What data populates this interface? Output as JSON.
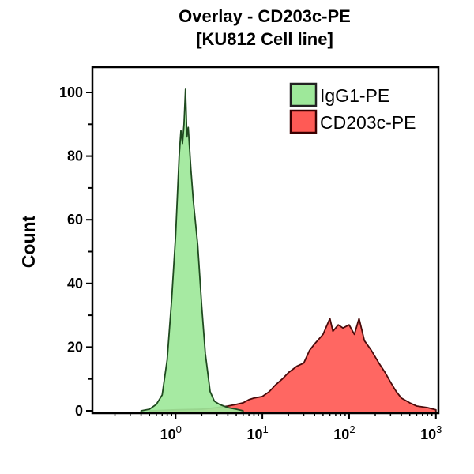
{
  "chart_data": {
    "type": "area",
    "title": "Overlay - CD203c-PE",
    "subtitle": "[KU812 Cell line]",
    "xlabel": "",
    "ylabel": "Count",
    "xscale": "log",
    "xlim": [
      0.11,
      1070
    ],
    "ylim": [
      0,
      108
    ],
    "grid": false,
    "legend_position": "top-right",
    "x_ticks": [
      {
        "base": "10",
        "exp": "0",
        "value": 1
      },
      {
        "base": "10",
        "exp": "1",
        "value": 10
      },
      {
        "base": "10",
        "exp": "2",
        "value": 100
      },
      {
        "base": "10",
        "exp": "3",
        "value": 1000
      }
    ],
    "y_ticks": [
      0,
      20,
      40,
      60,
      80,
      100
    ],
    "series": [
      {
        "name": "IgG1-PE",
        "fill": "#9ee89a",
        "stroke": "#1f4a1f",
        "x": [
          0.4,
          0.5,
          0.6,
          0.7,
          0.8,
          0.9,
          1.0,
          1.1,
          1.15,
          1.2,
          1.25,
          1.3,
          1.35,
          1.4,
          1.5,
          1.6,
          1.8,
          2.0,
          2.2,
          2.5,
          2.8,
          3.2,
          4,
          5,
          6
        ],
        "y": [
          0,
          0.5,
          2,
          5,
          16,
          35,
          55,
          80,
          88,
          84,
          90,
          101,
          86,
          89,
          76,
          66,
          52,
          33,
          18,
          6,
          3,
          2,
          1,
          0.5,
          0
        ]
      },
      {
        "name": "CD203c-PE",
        "fill": "#ff5a55",
        "stroke": "#4a0a0a",
        "x": [
          0.5,
          1,
          2,
          3,
          4,
          5,
          6,
          7,
          8,
          10,
          12,
          14,
          17,
          20,
          25,
          30,
          35,
          40,
          50,
          60,
          65,
          75,
          85,
          100,
          115,
          130,
          150,
          180,
          220,
          260,
          300,
          350,
          400,
          500,
          600,
          800,
          1000
        ],
        "y": [
          0,
          0.3,
          0.5,
          1,
          1.5,
          2,
          2.5,
          3.5,
          4,
          4.5,
          6,
          8,
          10,
          12,
          14,
          15,
          19,
          21,
          24,
          29,
          25,
          27,
          26,
          27,
          24,
          29,
          22,
          19,
          15,
          12,
          9,
          6,
          4,
          2.5,
          1.5,
          1,
          0.3
        ]
      }
    ]
  }
}
